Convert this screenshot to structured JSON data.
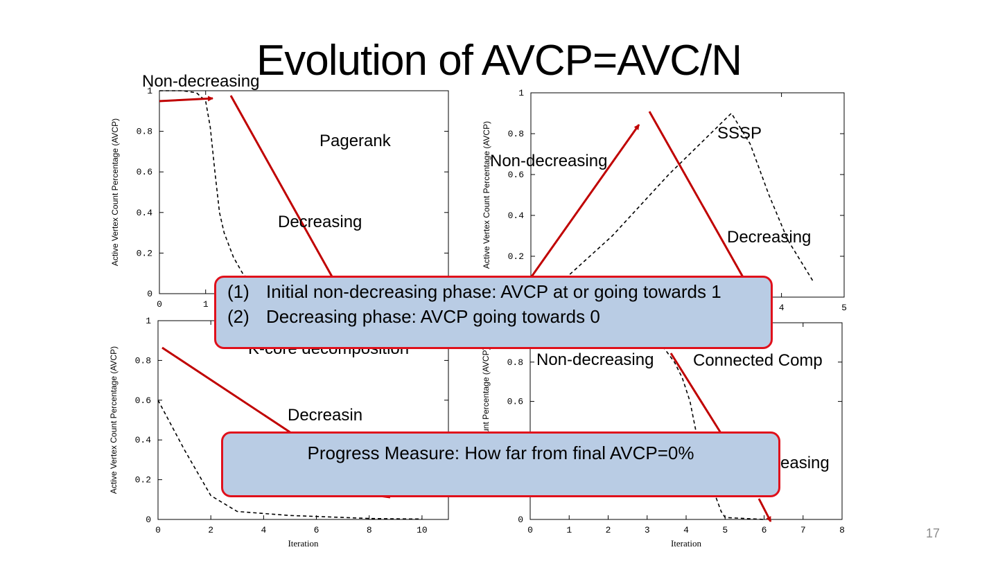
{
  "slide": {
    "title": "Evolution of AVCP=AVC/N",
    "page_number": "17"
  },
  "colors": {
    "annotation_red": "#c00000",
    "callout_fill": "#b9cce4",
    "callout_border": "#e0101b"
  },
  "callouts": {
    "phases": [
      {
        "num": "(1)",
        "text": "Initial non-decreasing phase: AVCP at or going towards 1"
      },
      {
        "num": "(2)",
        "text": "Decreasing phase: AVCP going towards 0"
      }
    ],
    "progress": "Progress Measure: How far from final AVCP=0%"
  },
  "chart_data": [
    {
      "id": "pagerank",
      "type": "line",
      "title": "Pagerank",
      "ylabel": "Active Vertex Count Percentage (AVCP)",
      "xlabel": "",
      "x_ticks": [
        "0",
        "1"
      ],
      "y_ticks": [
        "0",
        "0.2",
        "0.4",
        "0.6",
        "0.8",
        "1"
      ],
      "xlim": [
        0,
        6.25
      ],
      "ylim": [
        0,
        1
      ],
      "series": [
        {
          "x": [
            0,
            0.5,
            0.8,
            1.0,
            1.1,
            1.2,
            1.3,
            1.4,
            1.6,
            1.8,
            2.0
          ],
          "y": [
            1,
            1,
            0.99,
            0.95,
            0.82,
            0.6,
            0.4,
            0.3,
            0.18,
            0.1,
            0.05
          ]
        }
      ],
      "annotations": [
        "Non-decreasing",
        "Decreasing"
      ]
    },
    {
      "id": "sssp",
      "type": "line",
      "title": "SSSP",
      "ylabel": "Active Vertex Count Percentage (AVCP)",
      "xlabel": "",
      "x_ticks": [
        "4",
        "5"
      ],
      "y_ticks": [
        "0.2",
        "0.4",
        "0.6",
        "0.8",
        "1"
      ],
      "xlim": [
        0,
        5
      ],
      "ylim": [
        0,
        1
      ],
      "series": [
        {
          "x": [
            0.4,
            1.3,
            2.2,
            3.2,
            3.5,
            3.8,
            4.1,
            4.5
          ],
          "y": [
            0.05,
            0.3,
            0.6,
            0.9,
            0.75,
            0.5,
            0.28,
            0.08
          ]
        }
      ],
      "annotations": [
        "Non-decreasing",
        "Decreasing"
      ]
    },
    {
      "id": "kcore",
      "type": "line",
      "title": "K-core decomposition",
      "ylabel": "Active Vertex Count Percentage (AVCP)",
      "xlabel": "Iteration",
      "x_ticks": [
        "0",
        "2",
        "4",
        "6",
        "8",
        "10"
      ],
      "y_ticks": [
        "0",
        "0.2",
        "0.4",
        "0.6",
        "0.8",
        "1"
      ],
      "xlim": [
        0,
        11
      ],
      "ylim": [
        0,
        1
      ],
      "series": [
        {
          "x": [
            0,
            1,
            2,
            3,
            4,
            5,
            6,
            7,
            8,
            9,
            10
          ],
          "y": [
            0.6,
            0.35,
            0.12,
            0.04,
            0.03,
            0.02,
            0.015,
            0.01,
            0.005,
            0.003,
            0.002
          ]
        }
      ],
      "annotations": [
        "Decreasin"
      ]
    },
    {
      "id": "connected-comp",
      "type": "line",
      "title": "Connected Comp",
      "ylabel": "Active Vertex Count Percentage (AVCP)",
      "xlabel": "Iteration",
      "x_ticks": [
        "0",
        "1",
        "2",
        "3",
        "4",
        "5",
        "6",
        "7",
        "8"
      ],
      "y_ticks": [
        "0",
        "0.6",
        "0.8"
      ],
      "xlim": [
        0,
        8
      ],
      "ylim": [
        0,
        1
      ],
      "series": [
        {
          "x": [
            3.4,
            3.7,
            3.9,
            4.1,
            4.3,
            4.6,
            4.9,
            5.0,
            5.5,
            6.0
          ],
          "y": [
            0.88,
            0.8,
            0.72,
            0.6,
            0.4,
            0.2,
            0.04,
            0.01,
            0.005,
            0.0
          ]
        }
      ],
      "annotations": [
        "Non-decreasing",
        "easing"
      ]
    }
  ]
}
